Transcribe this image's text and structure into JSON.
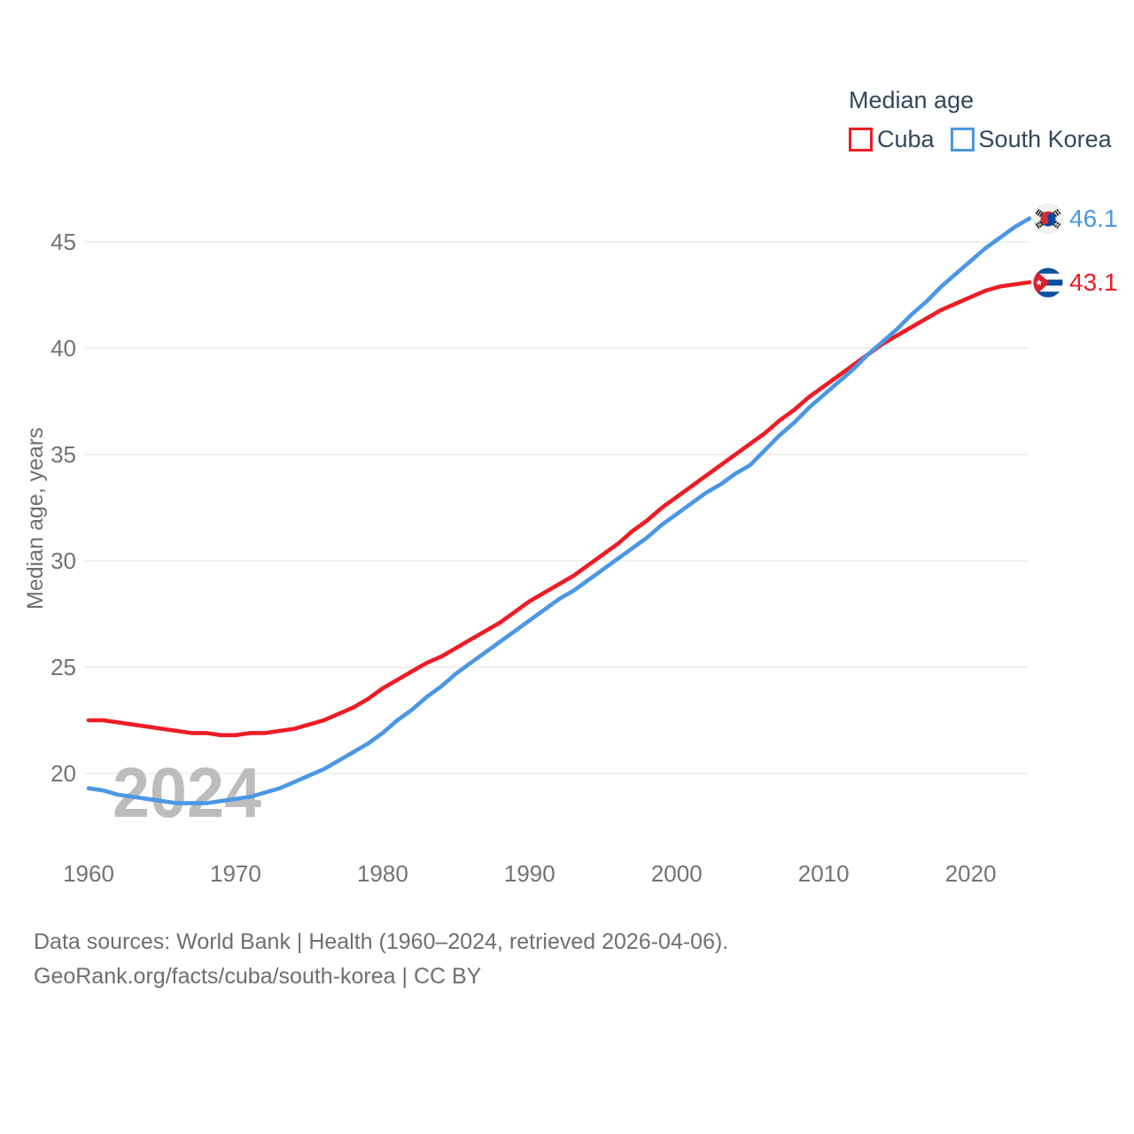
{
  "legend": {
    "title": "Median age",
    "items": [
      {
        "label": "Cuba",
        "color": "#ee1c25"
      },
      {
        "label": "South Korea",
        "color": "#4b97e4"
      }
    ]
  },
  "y_axis_title": "Median age, years",
  "watermark": "2024",
  "footer": {
    "line1": "Data sources: World Bank | Health (1960–2024, retrieved 2026-04-06).",
    "line2": "GeoRank.org/facts/cuba/south-korea | CC BY"
  },
  "end_markers": [
    {
      "series": "Cuba",
      "flag": "cuba",
      "value_label": "43.1"
    },
    {
      "series": "South Korea",
      "flag": "south-korea",
      "value_label": "46.1"
    }
  ],
  "chart_data": {
    "type": "line",
    "title": "Median age",
    "xlabel": "",
    "ylabel": "Median age, years",
    "ylim": [
      17.5,
      47.5
    ],
    "xlim": [
      1960,
      2024
    ],
    "yticks": [
      20,
      25,
      30,
      35,
      40,
      45
    ],
    "xticks": [
      1960,
      1970,
      1980,
      1990,
      2000,
      2010,
      2020
    ],
    "grid": "horizontal",
    "legend_position": "top-right",
    "x": [
      1960,
      1961,
      1962,
      1963,
      1964,
      1965,
      1966,
      1967,
      1968,
      1969,
      1970,
      1971,
      1972,
      1973,
      1974,
      1975,
      1976,
      1977,
      1978,
      1979,
      1980,
      1981,
      1982,
      1983,
      1984,
      1985,
      1986,
      1987,
      1988,
      1989,
      1990,
      1991,
      1992,
      1993,
      1994,
      1995,
      1996,
      1997,
      1998,
      1999,
      2000,
      2001,
      2002,
      2003,
      2004,
      2005,
      2006,
      2007,
      2008,
      2009,
      2010,
      2011,
      2012,
      2013,
      2014,
      2015,
      2016,
      2017,
      2018,
      2019,
      2020,
      2021,
      2022,
      2023,
      2024
    ],
    "series": [
      {
        "name": "Cuba",
        "color": "#ee1c25",
        "end_label": "43.1",
        "values": [
          22.5,
          22.5,
          22.4,
          22.3,
          22.2,
          22.1,
          22.0,
          21.9,
          21.9,
          21.8,
          21.8,
          21.9,
          21.9,
          22.0,
          22.1,
          22.3,
          22.5,
          22.8,
          23.1,
          23.5,
          24.0,
          24.4,
          24.8,
          25.2,
          25.5,
          25.9,
          26.3,
          26.7,
          27.1,
          27.6,
          28.1,
          28.5,
          28.9,
          29.3,
          29.8,
          30.3,
          30.8,
          31.4,
          31.9,
          32.5,
          33.0,
          33.5,
          34.0,
          34.5,
          35.0,
          35.5,
          36.0,
          36.6,
          37.1,
          37.7,
          38.2,
          38.7,
          39.2,
          39.7,
          40.2,
          40.6,
          41.0,
          41.4,
          41.8,
          42.1,
          42.4,
          42.7,
          42.9,
          43.0,
          43.1
        ]
      },
      {
        "name": "South Korea",
        "color": "#4b97e4",
        "end_label": "46.1",
        "values": [
          19.3,
          19.2,
          19.0,
          18.9,
          18.8,
          18.7,
          18.6,
          18.6,
          18.6,
          18.7,
          18.8,
          18.9,
          19.1,
          19.3,
          19.6,
          19.9,
          20.2,
          20.6,
          21.0,
          21.4,
          21.9,
          22.5,
          23.0,
          23.6,
          24.1,
          24.7,
          25.2,
          25.7,
          26.2,
          26.7,
          27.2,
          27.7,
          28.2,
          28.6,
          29.1,
          29.6,
          30.1,
          30.6,
          31.1,
          31.7,
          32.2,
          32.7,
          33.2,
          33.6,
          34.1,
          34.5,
          35.2,
          35.9,
          36.5,
          37.2,
          37.8,
          38.4,
          39.0,
          39.7,
          40.3,
          40.9,
          41.6,
          42.2,
          42.9,
          43.5,
          44.1,
          44.7,
          45.2,
          45.7,
          46.1
        ]
      }
    ]
  }
}
